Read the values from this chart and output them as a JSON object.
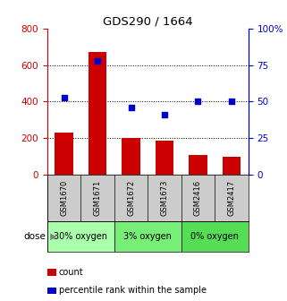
{
  "title": "GDS290 / 1664",
  "samples": [
    "GSM1670",
    "GSM1671",
    "GSM1672",
    "GSM1673",
    "GSM2416",
    "GSM2417"
  ],
  "bar_values": [
    230,
    670,
    200,
    185,
    105,
    100
  ],
  "scatter_values": [
    53,
    78,
    46,
    41,
    50,
    50
  ],
  "bar_color": "#cc0000",
  "scatter_color": "#0000cc",
  "ylim_left": [
    0,
    800
  ],
  "ylim_right": [
    0,
    100
  ],
  "yticks_left": [
    0,
    200,
    400,
    600,
    800
  ],
  "yticks_right": [
    0,
    25,
    50,
    75,
    100
  ],
  "ytick_labels_left": [
    "0",
    "200",
    "400",
    "600",
    "800"
  ],
  "ytick_labels_right": [
    "0",
    "25",
    "50",
    "75",
    "100%"
  ],
  "dose_groups": [
    {
      "label": "30% oxygen",
      "indices": [
        0,
        1
      ],
      "color": "#aaffaa"
    },
    {
      "label": "3% oxygen",
      "indices": [
        2,
        3
      ],
      "color": "#77ee77"
    },
    {
      "label": "0% oxygen",
      "indices": [
        4,
        5
      ],
      "color": "#55dd55"
    }
  ],
  "sample_bg": "#cccccc",
  "dose_label": "dose",
  "legend_count": "count",
  "legend_percentile": "percentile rank within the sample",
  "background_color": "#ffffff",
  "axis_color_left": "#cc0000",
  "axis_color_right": "#0000cc",
  "bar_width": 0.55
}
